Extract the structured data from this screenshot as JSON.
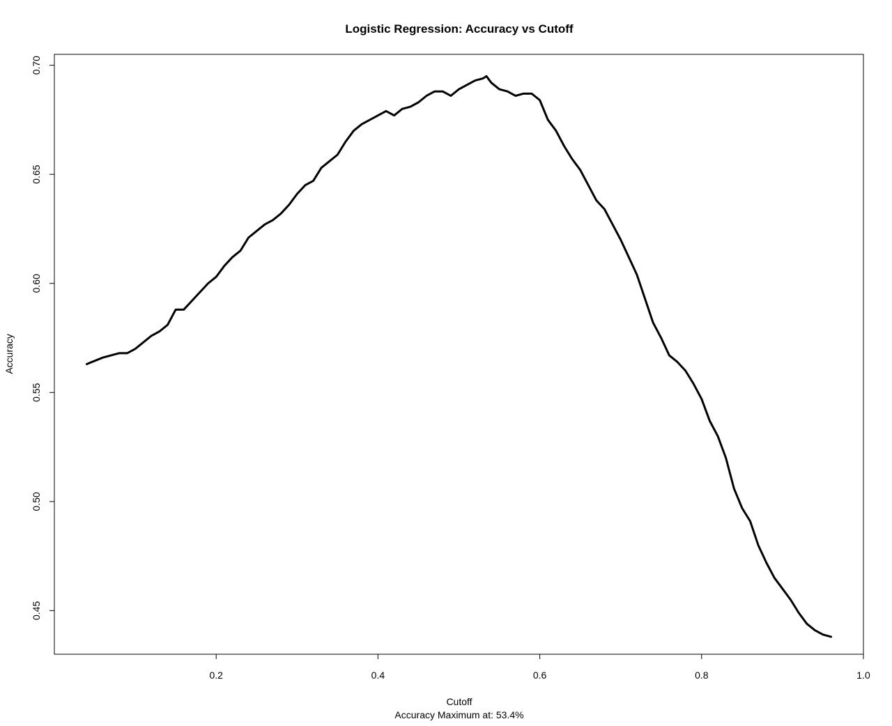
{
  "chart_data": {
    "type": "line",
    "title": "Logistic Regression: Accuracy vs Cutoff",
    "xlabel": "Cutoff",
    "ylabel": "Accuracy",
    "subtitle": "Accuracy Maximum at: 53.4%",
    "xlim": [
      0.0,
      1.0
    ],
    "ylim": [
      0.43,
      0.705
    ],
    "x_ticks": [
      0.2,
      0.4,
      0.6,
      0.8,
      1.0
    ],
    "x_tick_labels": [
      "0.2",
      "0.4",
      "0.6",
      "0.8",
      "1.0"
    ],
    "y_ticks": [
      0.45,
      0.5,
      0.55,
      0.6,
      0.65,
      0.7
    ],
    "y_tick_labels": [
      "0.45",
      "0.50",
      "0.55",
      "0.60",
      "0.65",
      "0.70"
    ],
    "grid": false,
    "series": [
      {
        "color": "#000000",
        "x": [
          0.04,
          0.06,
          0.08,
          0.09,
          0.1,
          0.11,
          0.12,
          0.13,
          0.14,
          0.15,
          0.16,
          0.17,
          0.18,
          0.19,
          0.2,
          0.21,
          0.22,
          0.23,
          0.24,
          0.25,
          0.26,
          0.27,
          0.28,
          0.29,
          0.3,
          0.31,
          0.32,
          0.33,
          0.34,
          0.35,
          0.36,
          0.37,
          0.38,
          0.39,
          0.4,
          0.41,
          0.42,
          0.43,
          0.44,
          0.45,
          0.46,
          0.47,
          0.48,
          0.49,
          0.5,
          0.51,
          0.52,
          0.53,
          0.534,
          0.54,
          0.55,
          0.56,
          0.57,
          0.58,
          0.59,
          0.6,
          0.61,
          0.62,
          0.63,
          0.64,
          0.65,
          0.66,
          0.67,
          0.68,
          0.69,
          0.7,
          0.71,
          0.72,
          0.73,
          0.74,
          0.75,
          0.76,
          0.77,
          0.78,
          0.79,
          0.8,
          0.81,
          0.82,
          0.83,
          0.84,
          0.85,
          0.86,
          0.87,
          0.88,
          0.89,
          0.9,
          0.91,
          0.92,
          0.93,
          0.94,
          0.95,
          0.96
        ],
        "y": [
          0.563,
          0.566,
          0.568,
          0.568,
          0.57,
          0.573,
          0.576,
          0.578,
          0.581,
          0.588,
          0.588,
          0.592,
          0.596,
          0.6,
          0.603,
          0.608,
          0.612,
          0.615,
          0.621,
          0.624,
          0.627,
          0.629,
          0.632,
          0.636,
          0.641,
          0.645,
          0.647,
          0.653,
          0.656,
          0.659,
          0.665,
          0.67,
          0.673,
          0.675,
          0.677,
          0.679,
          0.677,
          0.68,
          0.681,
          0.683,
          0.686,
          0.688,
          0.688,
          0.686,
          0.689,
          0.691,
          0.693,
          0.694,
          0.695,
          0.692,
          0.689,
          0.688,
          0.686,
          0.687,
          0.687,
          0.684,
          0.675,
          0.67,
          0.663,
          0.657,
          0.652,
          0.645,
          0.638,
          0.634,
          0.627,
          0.62,
          0.612,
          0.604,
          0.593,
          0.582,
          0.575,
          0.567,
          0.564,
          0.56,
          0.554,
          0.547,
          0.537,
          0.53,
          0.52,
          0.506,
          0.497,
          0.491,
          0.48,
          0.472,
          0.465,
          0.46,
          0.455,
          0.449,
          0.444,
          0.441,
          0.439,
          0.438
        ]
      }
    ]
  }
}
